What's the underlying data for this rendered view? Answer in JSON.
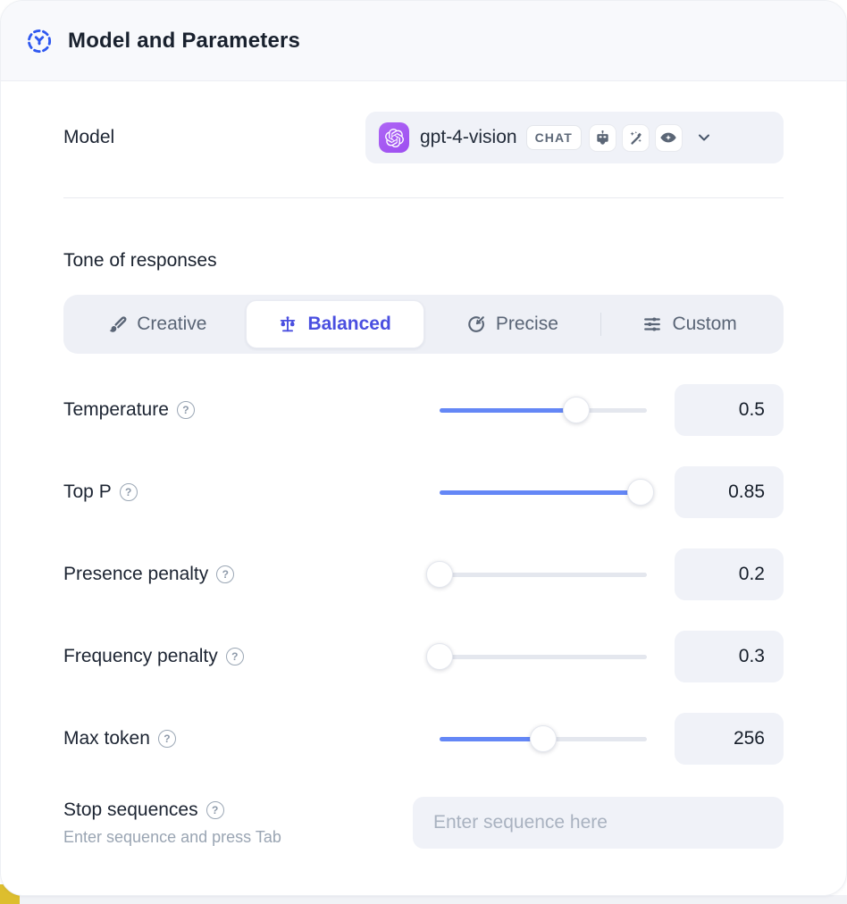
{
  "header": {
    "title": "Model and Parameters"
  },
  "model": {
    "label": "Model",
    "selected_model": "gpt-4-vision",
    "type_badge": "CHAT",
    "capabilities": [
      "assistant-bot",
      "wand-sparkles",
      "vision-eye"
    ]
  },
  "tone": {
    "title": "Tone of responses",
    "tabs": [
      {
        "label": "Creative",
        "icon": "brush-icon",
        "active": false
      },
      {
        "label": "Balanced",
        "icon": "scale-icon",
        "active": true
      },
      {
        "label": "Precise",
        "icon": "goal-icon",
        "active": false
      },
      {
        "label": "Custom",
        "icon": "sliders-icon",
        "active": false
      }
    ]
  },
  "parameters": [
    {
      "label": "Temperature",
      "value": "0.5",
      "percent": 66
    },
    {
      "label": "Top P",
      "value": "0.85",
      "percent": 97
    },
    {
      "label": "Presence penalty",
      "value": "0.2",
      "percent": 0
    },
    {
      "label": "Frequency penalty",
      "value": "0.3",
      "percent": 0
    },
    {
      "label": "Max token",
      "value": "256",
      "percent": 50
    }
  ],
  "stop_sequences": {
    "label": "Stop sequences",
    "helper": "Enter sequence and press Tab",
    "placeholder": "Enter sequence here"
  },
  "colors": {
    "accent_indigo": "#4a4fe0",
    "slider_blue": "#6487f6",
    "brand_purple": "#a55bf2",
    "header_icon_blue": "#2f58f0",
    "corner_yellow": "#ddbe2e",
    "control_bg": "#f0f2f8"
  }
}
